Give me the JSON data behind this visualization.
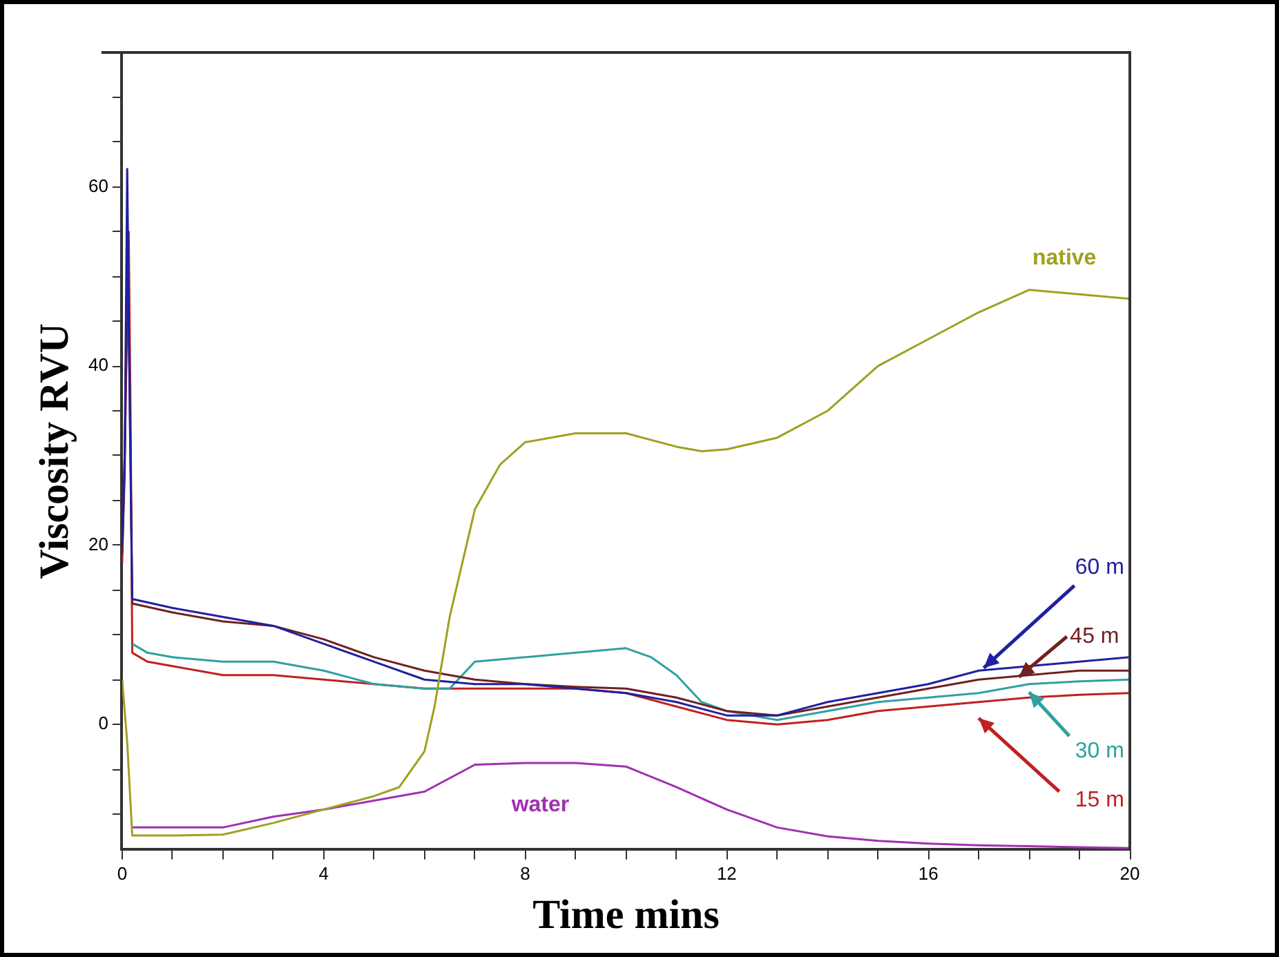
{
  "chart_data": {
    "type": "line",
    "xlabel": "Time mins",
    "ylabel": "Viscosity RVU",
    "xlim": [
      0,
      20
    ],
    "xticks": [
      0,
      {
        "value": 1,
        "label": null
      },
      {
        "value": 2,
        "label": null
      },
      {
        "value": 3,
        "label": null
      },
      4,
      {
        "value": 5,
        "label": null
      },
      {
        "value": 6,
        "label": null
      },
      {
        "value": 7,
        "label": null
      },
      8,
      {
        "value": 9,
        "label": null
      },
      {
        "value": 10,
        "label": null
      },
      {
        "value": 11,
        "label": null
      },
      12,
      {
        "value": 13,
        "label": null
      },
      {
        "value": 14,
        "label": null
      },
      {
        "value": 15,
        "label": null
      },
      16,
      {
        "value": 17,
        "label": null
      },
      {
        "value": 18,
        "label": null
      },
      {
        "value": 19,
        "label": null
      },
      20
    ],
    "ylim": [
      -14,
      75
    ],
    "yticks": [
      {
        "value": -10,
        "label": null
      },
      {
        "value": -5,
        "label": null
      },
      0,
      {
        "value": 5,
        "label": null
      },
      {
        "value": 10,
        "label": null
      },
      {
        "value": 15,
        "label": null
      },
      20,
      {
        "value": 25,
        "label": null
      },
      {
        "value": 30,
        "label": null
      },
      {
        "value": 35,
        "label": null
      },
      40,
      {
        "value": 45,
        "label": null
      },
      {
        "value": 50,
        "label": null
      },
      {
        "value": 55,
        "label": null
      },
      60,
      {
        "value": 65,
        "label": null
      },
      {
        "value": 70,
        "label": null
      },
      {
        "value": 75,
        "label": null
      }
    ],
    "grid": false,
    "legend": false,
    "marker": "none",
    "line_style": "solid",
    "series": [
      {
        "name": "native",
        "color": "#a0a020",
        "x": [
          0,
          0.1,
          0.2,
          1,
          2,
          3,
          4,
          5,
          5.5,
          6,
          6.2,
          6.5,
          7,
          7.5,
          8,
          9,
          10,
          11,
          11.5,
          12,
          13,
          14,
          15,
          16,
          17,
          18,
          19,
          20
        ],
        "values": [
          5,
          -2,
          -12.4,
          -12.4,
          -12.3,
          -11,
          -9.5,
          -8,
          -7,
          -3,
          2,
          12,
          24,
          29,
          31.5,
          32.5,
          32.5,
          31,
          30.5,
          30.7,
          32,
          35,
          40,
          43,
          46,
          48.5,
          48,
          47.5
        ]
      },
      {
        "name": "water",
        "color": "#a030b0",
        "x": [
          0.2,
          1,
          2,
          3,
          4,
          5,
          6,
          7,
          8,
          9,
          10,
          11,
          12,
          13,
          14,
          15,
          16,
          17,
          18,
          19,
          20
        ],
        "values": [
          -11.5,
          -11.5,
          -11.5,
          -10.3,
          -9.5,
          -8.5,
          -7.5,
          -4.5,
          -4.3,
          -4.3,
          -4.7,
          -7,
          -9.5,
          -11.5,
          -12.5,
          -13,
          -13.3,
          -13.5,
          -13.6,
          -13.7,
          -13.8
        ]
      },
      {
        "name": "60 m",
        "color": "#2020a0",
        "x": [
          0,
          0.05,
          0.1,
          0.15,
          0.2,
          1,
          2,
          3,
          4,
          5,
          6,
          7,
          8,
          9,
          10,
          11,
          12,
          13,
          14,
          15,
          16,
          17,
          18,
          19,
          20
        ],
        "values": [
          20,
          30,
          62,
          35,
          14,
          13,
          12,
          11,
          9,
          7,
          5,
          4.5,
          4.5,
          4,
          3.5,
          2.5,
          1,
          1,
          2.5,
          3.5,
          4.5,
          6,
          6.5,
          7,
          7.5
        ]
      },
      {
        "name": "45 m",
        "color": "#702020",
        "x": [
          0,
          0.05,
          0.1,
          0.15,
          0.2,
          1,
          2,
          3,
          4,
          5,
          6,
          7,
          8,
          9,
          10,
          11,
          12,
          13,
          14,
          15,
          16,
          17,
          18,
          19,
          20
        ],
        "values": [
          19,
          28,
          52,
          38,
          13.5,
          12.5,
          11.5,
          11,
          9.5,
          7.5,
          6,
          5,
          4.5,
          4.2,
          4,
          3,
          1.5,
          1,
          2,
          3,
          4,
          5,
          5.5,
          6,
          6
        ]
      },
      {
        "name": "30 m",
        "color": "#30a0a0",
        "x": [
          0.2,
          0.5,
          1,
          2,
          3,
          4,
          5,
          6,
          6.5,
          7,
          8,
          9,
          10,
          10.5,
          11,
          11.5,
          12,
          13,
          14,
          15,
          16,
          17,
          18,
          19,
          20
        ],
        "values": [
          9,
          8,
          7.5,
          7,
          7,
          6,
          4.5,
          4,
          4,
          7,
          7.5,
          8,
          8.5,
          7.5,
          5.5,
          2.5,
          1.5,
          0.5,
          1.5,
          2.5,
          3,
          3.5,
          4.5,
          4.8,
          5
        ]
      },
      {
        "name": "15 m",
        "color": "#c02020",
        "x": [
          0,
          0.05,
          0.13,
          0.17,
          0.2,
          0.5,
          1,
          2,
          3,
          4,
          5,
          6,
          7,
          8,
          9,
          10,
          11,
          12,
          13,
          14,
          15,
          16,
          17,
          18,
          19,
          20
        ],
        "values": [
          18,
          30,
          55,
          32,
          8,
          7,
          6.5,
          5.5,
          5.5,
          5,
          4.5,
          4,
          4,
          4,
          4,
          3.5,
          2,
          0.5,
          0,
          0.5,
          1.5,
          2,
          2.5,
          3,
          3.3,
          3.5
        ]
      }
    ]
  }
}
